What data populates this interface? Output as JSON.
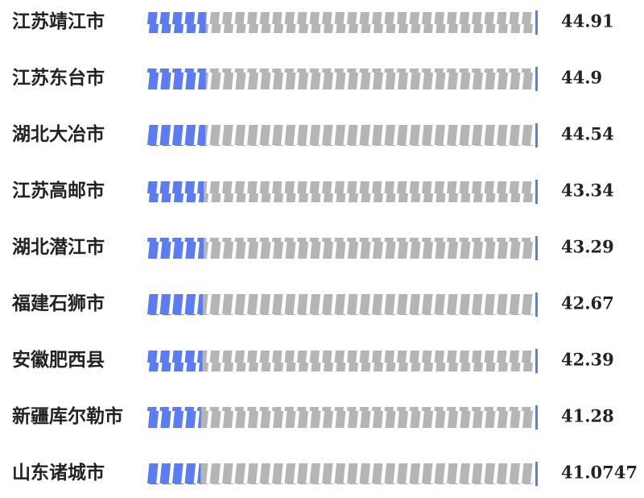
{
  "chart_data": {
    "type": "bar",
    "orientation": "horizontal",
    "categories": [
      "江苏靖江市",
      "江苏东台市",
      "湖北大冶市",
      "江苏高邮市",
      "湖北潜江市",
      "福建石狮市",
      "安徽肥西县",
      "新疆库尔勒市",
      "山东诸城市"
    ],
    "values": [
      44.91,
      44.9,
      44.54,
      43.34,
      43.29,
      42.67,
      42.39,
      41.28,
      41.0747
    ],
    "color": "#5b7cf2",
    "xlim": [
      0,
      300
    ]
  }
}
